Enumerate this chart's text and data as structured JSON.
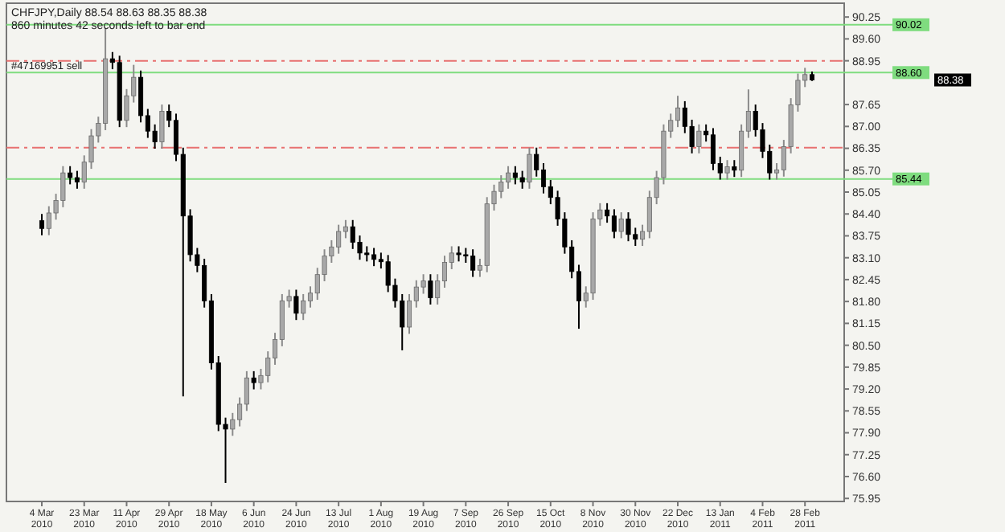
{
  "chart_data": {
    "type": "candlestick",
    "title": "CHFJPY,Daily  88.54 88.63 88.35 88.38",
    "subtitle": "860 minutes 42 seconds left to bar end",
    "annotations": [
      {
        "text": "#47169951 sell",
        "y": 88.6
      },
      "88.38"
    ],
    "categories": [
      "4 Mar 2010",
      null,
      null,
      null,
      null,
      null,
      "23 Mar 2010",
      null,
      null,
      null,
      null,
      null,
      "11 Apr 2010",
      null,
      null,
      null,
      null,
      null,
      "29 Apr 2010",
      null,
      null,
      null,
      null,
      null,
      "18 May 2010",
      null,
      null,
      null,
      null,
      null,
      "6 Jun 2010",
      null,
      null,
      null,
      null,
      null,
      "24 Jun 2010",
      null,
      null,
      null,
      null,
      null,
      "13 Jul 2010",
      null,
      null,
      null,
      null,
      null,
      "1 Aug 2010",
      null,
      null,
      null,
      null,
      null,
      "19 Aug 2010",
      null,
      null,
      null,
      null,
      null,
      "7 Sep 2010",
      null,
      null,
      null,
      null,
      null,
      "26 Sep 2010",
      null,
      null,
      null,
      null,
      null,
      "15 Oct 2010",
      null,
      null,
      null,
      null,
      null,
      "8 Nov 2010",
      null,
      null,
      null,
      null,
      null,
      "30 Nov 2010",
      null,
      null,
      null,
      null,
      null,
      "22 Dec 2010",
      null,
      null,
      null,
      null,
      null,
      "13 Jan 2011",
      null,
      null,
      null,
      null,
      null,
      "4 Feb 2011",
      null,
      null,
      null,
      null,
      null,
      "28 Feb 2011",
      null
    ],
    "ohlc": [
      [
        84.2,
        84.4,
        83.77,
        83.97
      ],
      [
        83.97,
        84.63,
        83.77,
        84.43
      ],
      [
        84.43,
        85.0,
        84.23,
        84.8
      ],
      [
        84.8,
        85.82,
        84.6,
        85.62
      ],
      [
        85.62,
        85.82,
        85.28,
        85.48
      ],
      [
        85.48,
        85.68,
        85.15,
        85.35
      ],
      [
        85.35,
        86.14,
        85.15,
        85.94
      ],
      [
        85.94,
        86.92,
        85.74,
        86.72
      ],
      [
        86.72,
        87.29,
        86.52,
        87.09
      ],
      [
        87.09,
        89.93,
        86.89,
        89.01
      ],
      [
        89.01,
        89.21,
        88.7,
        88.9
      ],
      [
        88.9,
        89.1,
        86.98,
        87.18
      ],
      [
        87.18,
        88.11,
        86.98,
        87.91
      ],
      [
        87.91,
        88.83,
        87.71,
        88.46
      ],
      [
        88.46,
        88.66,
        87.12,
        87.32
      ],
      [
        87.32,
        87.52,
        86.66,
        86.86
      ],
      [
        86.86,
        87.06,
        86.34,
        86.54
      ],
      [
        86.54,
        87.65,
        86.34,
        87.45
      ],
      [
        87.45,
        87.65,
        86.98,
        87.18
      ],
      [
        87.18,
        87.38,
        85.97,
        86.17
      ],
      [
        86.17,
        86.37,
        78.98,
        84.34
      ],
      [
        84.34,
        84.54,
        82.99,
        83.19
      ],
      [
        83.19,
        83.39,
        82.67,
        82.87
      ],
      [
        82.87,
        83.07,
        81.62,
        81.82
      ],
      [
        81.82,
        82.02,
        79.78,
        79.98
      ],
      [
        79.98,
        80.18,
        77.95,
        78.15
      ],
      [
        78.15,
        78.35,
        76.41,
        78.01
      ],
      [
        78.01,
        78.49,
        77.81,
        78.29
      ],
      [
        78.29,
        78.95,
        78.09,
        78.75
      ],
      [
        78.75,
        79.73,
        78.55,
        79.53
      ],
      [
        79.53,
        79.73,
        79.19,
        79.39
      ],
      [
        79.39,
        79.8,
        79.19,
        79.6
      ],
      [
        79.6,
        80.32,
        79.4,
        80.12
      ],
      [
        80.12,
        80.87,
        79.92,
        80.67
      ],
      [
        80.67,
        82.02,
        80.47,
        81.82
      ],
      [
        81.82,
        82.15,
        81.62,
        81.95
      ],
      [
        81.95,
        82.15,
        81.25,
        81.45
      ],
      [
        81.45,
        82.02,
        81.25,
        81.82
      ],
      [
        81.82,
        82.25,
        81.62,
        82.05
      ],
      [
        82.05,
        82.8,
        81.85,
        82.6
      ],
      [
        82.6,
        83.35,
        82.4,
        83.15
      ],
      [
        83.15,
        83.62,
        82.95,
        83.42
      ],
      [
        83.42,
        84.08,
        83.22,
        83.88
      ],
      [
        83.88,
        84.22,
        83.68,
        84.02
      ],
      [
        84.02,
        84.22,
        83.36,
        83.56
      ],
      [
        83.56,
        83.76,
        83.04,
        83.24
      ],
      [
        83.24,
        83.44,
        82.99,
        83.19
      ],
      [
        83.19,
        83.39,
        82.85,
        83.05
      ],
      [
        83.05,
        83.25,
        82.78,
        82.98
      ],
      [
        82.98,
        83.18,
        82.08,
        82.28
      ],
      [
        82.28,
        82.48,
        81.62,
        81.82
      ],
      [
        81.82,
        82.02,
        80.35,
        81.04
      ],
      [
        81.04,
        82.02,
        80.84,
        81.82
      ],
      [
        81.82,
        82.43,
        81.62,
        82.23
      ],
      [
        82.23,
        82.61,
        82.03,
        82.41
      ],
      [
        82.41,
        82.61,
        81.71,
        81.91
      ],
      [
        81.91,
        82.61,
        81.71,
        82.41
      ],
      [
        82.41,
        83.16,
        82.21,
        82.96
      ],
      [
        82.96,
        83.44,
        82.76,
        83.24
      ],
      [
        83.24,
        83.44,
        82.99,
        83.19
      ],
      [
        83.19,
        83.39,
        82.95,
        83.15
      ],
      [
        83.15,
        83.35,
        82.53,
        82.73
      ],
      [
        82.73,
        83.07,
        82.53,
        82.87
      ],
      [
        82.87,
        84.9,
        82.67,
        84.7
      ],
      [
        84.7,
        85.27,
        84.5,
        85.07
      ],
      [
        85.07,
        85.55,
        84.87,
        85.35
      ],
      [
        85.35,
        85.82,
        85.15,
        85.62
      ],
      [
        85.62,
        85.82,
        85.28,
        85.48
      ],
      [
        85.48,
        85.68,
        85.15,
        85.35
      ],
      [
        85.35,
        86.37,
        85.15,
        86.17
      ],
      [
        86.17,
        86.37,
        85.51,
        85.71
      ],
      [
        85.71,
        85.91,
        85.01,
        85.21
      ],
      [
        85.21,
        85.41,
        84.69,
        84.89
      ],
      [
        84.89,
        85.09,
        84.05,
        84.25
      ],
      [
        84.25,
        84.45,
        83.22,
        83.42
      ],
      [
        83.42,
        83.62,
        82.49,
        82.69
      ],
      [
        82.69,
        82.89,
        80.99,
        81.82
      ],
      [
        81.82,
        82.25,
        81.62,
        82.05
      ],
      [
        82.05,
        84.45,
        81.85,
        84.25
      ],
      [
        84.25,
        84.72,
        84.05,
        84.52
      ],
      [
        84.52,
        84.72,
        84.14,
        84.34
      ],
      [
        84.34,
        84.54,
        83.68,
        83.88
      ],
      [
        83.88,
        84.45,
        83.68,
        84.25
      ],
      [
        84.25,
        84.45,
        83.59,
        83.79
      ],
      [
        83.79,
        83.99,
        83.45,
        83.65
      ],
      [
        83.65,
        84.08,
        83.45,
        83.88
      ],
      [
        83.88,
        85.09,
        83.68,
        84.89
      ],
      [
        84.89,
        85.68,
        84.69,
        85.48
      ],
      [
        85.48,
        87.06,
        85.28,
        86.86
      ],
      [
        86.86,
        87.38,
        86.66,
        87.18
      ],
      [
        87.18,
        87.91,
        86.98,
        87.55
      ],
      [
        87.55,
        87.75,
        86.8,
        87.0
      ],
      [
        87.0,
        87.2,
        86.2,
        86.4
      ],
      [
        86.4,
        87.06,
        86.2,
        86.86
      ],
      [
        86.86,
        87.06,
        86.55,
        86.75
      ],
      [
        86.75,
        86.95,
        85.7,
        85.9
      ],
      [
        85.9,
        86.1,
        85.42,
        85.62
      ],
      [
        85.62,
        86.0,
        85.42,
        85.8
      ],
      [
        85.8,
        86.0,
        85.5,
        85.7
      ],
      [
        85.7,
        87.06,
        85.5,
        86.86
      ],
      [
        86.86,
        88.1,
        86.66,
        87.45
      ],
      [
        87.45,
        87.65,
        86.7,
        86.9
      ],
      [
        86.9,
        87.1,
        86.06,
        86.26
      ],
      [
        86.26,
        86.46,
        85.42,
        85.62
      ],
      [
        85.62,
        85.91,
        85.42,
        85.71
      ],
      [
        85.71,
        86.6,
        85.51,
        86.4
      ],
      [
        86.4,
        87.84,
        86.2,
        87.64
      ],
      [
        87.64,
        88.57,
        87.44,
        88.37
      ],
      [
        88.37,
        88.74,
        88.17,
        88.54
      ],
      [
        88.54,
        88.63,
        88.35,
        88.38
      ]
    ],
    "ylim": [
      75.86,
      90.66
    ],
    "yticks": [
      {
        "value": 90.25,
        "label": "90.25"
      },
      {
        "value": 89.6,
        "label": "89.60"
      },
      {
        "value": 88.95,
        "label": "88.95"
      },
      {
        "value": 87.65,
        "label": "87.65"
      },
      {
        "value": 87.0,
        "label": "87.00"
      },
      {
        "value": 86.35,
        "label": "86.35"
      },
      {
        "value": 85.7,
        "label": "85.70"
      },
      {
        "value": 85.05,
        "label": "85.05"
      },
      {
        "value": 84.4,
        "label": "84.40"
      },
      {
        "value": 83.75,
        "label": "83.75"
      },
      {
        "value": 83.1,
        "label": "83.10"
      },
      {
        "value": 82.45,
        "label": "82.45"
      },
      {
        "value": 81.8,
        "label": "81.80"
      },
      {
        "value": 81.15,
        "label": "81.15"
      },
      {
        "value": 80.5,
        "label": "80.50"
      },
      {
        "value": 79.85,
        "label": "79.85"
      },
      {
        "value": 79.2,
        "label": "79.20"
      },
      {
        "value": 78.55,
        "label": "78.55"
      },
      {
        "value": 77.9,
        "label": "77.90"
      },
      {
        "value": 77.25,
        "label": "77.25"
      },
      {
        "value": 76.6,
        "label": "76.60"
      },
      {
        "value": 75.95,
        "label": "75.95"
      }
    ],
    "ref_lines": [
      {
        "axis": "y",
        "value": 90.02,
        "label": "90.02",
        "color": "#7fdc7f",
        "line_style": "solid"
      },
      {
        "axis": "y",
        "value": 88.6,
        "label": "88.60",
        "color": "#7fdc7f",
        "line_style": "solid"
      },
      {
        "axis": "y",
        "value": 85.44,
        "label": "85.44",
        "color": "#7fdc7f",
        "line_style": "solid"
      },
      {
        "axis": "y",
        "value": 88.95,
        "color": "#e87070",
        "line_style": "dashed"
      },
      {
        "axis": "y",
        "value": 86.37,
        "color": "#e87070",
        "line_style": "dashed"
      }
    ]
  }
}
